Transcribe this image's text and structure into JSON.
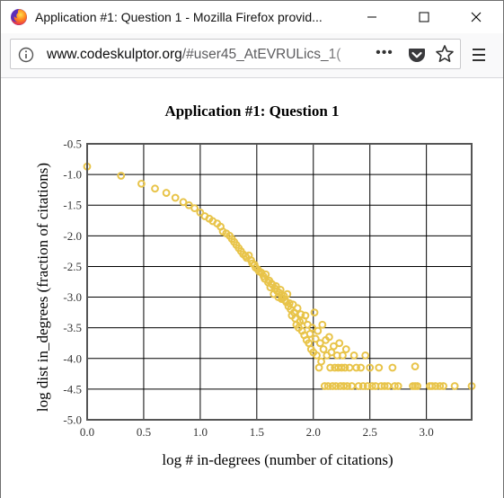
{
  "window": {
    "title": "Application #1: Question 1 - Mozilla Firefox provid..."
  },
  "urlbar": {
    "host": "www.codeskulptor.org",
    "path": "/#user45_AtEVRULics_1("
  },
  "page_actions_label": "•••",
  "colors": {
    "marker_stroke": "#e8c44a",
    "grid": "#000000",
    "frame": "#555555"
  },
  "icons": {
    "logo": "firefox-logo-icon",
    "info": "info-icon",
    "pocket": "pocket-icon",
    "bookmark": "star-icon",
    "menu": "hamburger-menu-icon"
  },
  "chart_data": {
    "type": "scatter",
    "title": "Application #1: Question 1",
    "xlabel": "log # in-degrees (number of citations)",
    "ylabel": "log dist in_degrees (fraction of citations)",
    "xlim": [
      0.0,
      3.4
    ],
    "ylim": [
      -5.0,
      -0.5
    ],
    "xticks": [
      0.0,
      0.5,
      1.0,
      1.5,
      2.0,
      2.5,
      3.0
    ],
    "xtick_labels": [
      "0.0",
      "0.5",
      "1.0",
      "1.5",
      "2.0",
      "2.5",
      "3.0"
    ],
    "yticks": [
      -0.5,
      -1.0,
      -1.5,
      -2.0,
      -2.5,
      -3.0,
      -3.5,
      -4.0,
      -4.5,
      -5.0
    ],
    "ytick_labels": [
      "-0.5",
      "-1.0",
      "-1.5",
      "-2.0",
      "-2.5",
      "-3.0",
      "-3.5",
      "-4.0",
      "-4.5",
      "-5.0"
    ],
    "grid": true,
    "marker": "open-circle",
    "points": [
      [
        0.0,
        -0.87
      ],
      [
        0.3,
        -1.02
      ],
      [
        0.48,
        -1.15
      ],
      [
        0.6,
        -1.23
      ],
      [
        0.7,
        -1.3
      ],
      [
        0.78,
        -1.38
      ],
      [
        0.85,
        -1.45
      ],
      [
        0.9,
        -1.5
      ],
      [
        0.95,
        -1.55
      ],
      [
        1.0,
        -1.62
      ],
      [
        1.04,
        -1.68
      ],
      [
        1.08,
        -1.72
      ],
      [
        1.11,
        -1.76
      ],
      [
        1.15,
        -1.8
      ],
      [
        1.18,
        -1.85
      ],
      [
        1.2,
        -1.93
      ],
      [
        1.23,
        -1.96
      ],
      [
        1.26,
        -2.0
      ],
      [
        1.28,
        -2.05
      ],
      [
        1.3,
        -2.1
      ],
      [
        1.32,
        -2.15
      ],
      [
        1.34,
        -2.2
      ],
      [
        1.36,
        -2.25
      ],
      [
        1.38,
        -2.3
      ],
      [
        1.4,
        -2.33
      ],
      [
        1.41,
        -2.36
      ],
      [
        1.43,
        -2.32
      ],
      [
        1.45,
        -2.4
      ],
      [
        1.46,
        -2.45
      ],
      [
        1.48,
        -2.47
      ],
      [
        1.49,
        -2.52
      ],
      [
        1.51,
        -2.55
      ],
      [
        1.52,
        -2.58
      ],
      [
        1.54,
        -2.6
      ],
      [
        1.56,
        -2.66
      ],
      [
        1.57,
        -2.7
      ],
      [
        1.58,
        -2.63
      ],
      [
        1.6,
        -2.76
      ],
      [
        1.61,
        -2.73
      ],
      [
        1.62,
        -2.84
      ],
      [
        1.63,
        -2.78
      ],
      [
        1.64,
        -2.8
      ],
      [
        1.65,
        -2.95
      ],
      [
        1.66,
        -2.86
      ],
      [
        1.67,
        -2.82
      ],
      [
        1.68,
        -2.9
      ],
      [
        1.69,
        -3.0
      ],
      [
        1.7,
        -2.93
      ],
      [
        1.71,
        -2.88
      ],
      [
        1.72,
        -3.03
      ],
      [
        1.73,
        -3.02
      ],
      [
        1.74,
        -2.98
      ],
      [
        1.75,
        -3.05
      ],
      [
        1.76,
        -3.08
      ],
      [
        1.77,
        -2.95
      ],
      [
        1.78,
        -3.15
      ],
      [
        1.79,
        -3.1
      ],
      [
        1.8,
        -3.2
      ],
      [
        1.81,
        -3.3
      ],
      [
        1.82,
        -3.12
      ],
      [
        1.83,
        -3.25
      ],
      [
        1.84,
        -3.35
      ],
      [
        1.85,
        -3.45
      ],
      [
        1.86,
        -3.18
      ],
      [
        1.87,
        -3.5
      ],
      [
        1.88,
        -3.4
      ],
      [
        1.89,
        -3.28
      ],
      [
        1.9,
        -3.55
      ],
      [
        1.91,
        -3.38
      ],
      [
        1.92,
        -3.62
      ],
      [
        1.93,
        -3.3
      ],
      [
        1.94,
        -3.7
      ],
      [
        1.95,
        -3.45
      ],
      [
        1.96,
        -3.75
      ],
      [
        1.97,
        -3.6
      ],
      [
        1.98,
        -3.85
      ],
      [
        1.99,
        -3.5
      ],
      [
        2.0,
        -3.9
      ],
      [
        2.01,
        -3.25
      ],
      [
        2.02,
        -3.68
      ],
      [
        2.03,
        -3.95
      ],
      [
        2.04,
        -3.55
      ],
      [
        2.05,
        -4.15
      ],
      [
        2.06,
        -3.75
      ],
      [
        2.07,
        -4.05
      ],
      [
        2.08,
        -3.45
      ],
      [
        2.09,
        -3.85
      ],
      [
        2.1,
        -4.45
      ],
      [
        2.11,
        -3.7
      ],
      [
        2.12,
        -3.95
      ],
      [
        2.13,
        -4.45
      ],
      [
        2.14,
        -3.65
      ],
      [
        2.15,
        -4.15
      ],
      [
        2.16,
        -3.9
      ],
      [
        2.17,
        -4.45
      ],
      [
        2.18,
        -3.8
      ],
      [
        2.19,
        -4.15
      ],
      [
        2.2,
        -4.45
      ],
      [
        2.21,
        -3.95
      ],
      [
        2.22,
        -4.15
      ],
      [
        2.23,
        -3.75
      ],
      [
        2.24,
        -4.45
      ],
      [
        2.25,
        -4.15
      ],
      [
        2.26,
        -3.95
      ],
      [
        2.27,
        -4.45
      ],
      [
        2.28,
        -4.15
      ],
      [
        2.29,
        -3.85
      ],
      [
        2.3,
        -4.45
      ],
      [
        2.32,
        -4.15
      ],
      [
        2.34,
        -4.45
      ],
      [
        2.36,
        -3.95
      ],
      [
        2.38,
        -4.15
      ],
      [
        2.4,
        -4.45
      ],
      [
        2.42,
        -4.15
      ],
      [
        2.44,
        -4.45
      ],
      [
        2.46,
        -3.95
      ],
      [
        2.48,
        -4.45
      ],
      [
        2.5,
        -4.15
      ],
      [
        2.52,
        -4.45
      ],
      [
        2.55,
        -4.45
      ],
      [
        2.58,
        -4.15
      ],
      [
        2.6,
        -4.45
      ],
      [
        2.63,
        -4.45
      ],
      [
        2.66,
        -4.45
      ],
      [
        2.7,
        -4.15
      ],
      [
        2.72,
        -4.45
      ],
      [
        2.75,
        -4.45
      ],
      [
        2.88,
        -4.45
      ],
      [
        2.9,
        -4.45
      ],
      [
        2.92,
        -4.45
      ],
      [
        2.9,
        -4.13
      ],
      [
        3.03,
        -4.45
      ],
      [
        3.05,
        -4.45
      ],
      [
        3.08,
        -4.45
      ],
      [
        3.12,
        -4.45
      ],
      [
        3.15,
        -4.45
      ],
      [
        3.25,
        -4.45
      ],
      [
        3.4,
        -4.45
      ]
    ]
  }
}
